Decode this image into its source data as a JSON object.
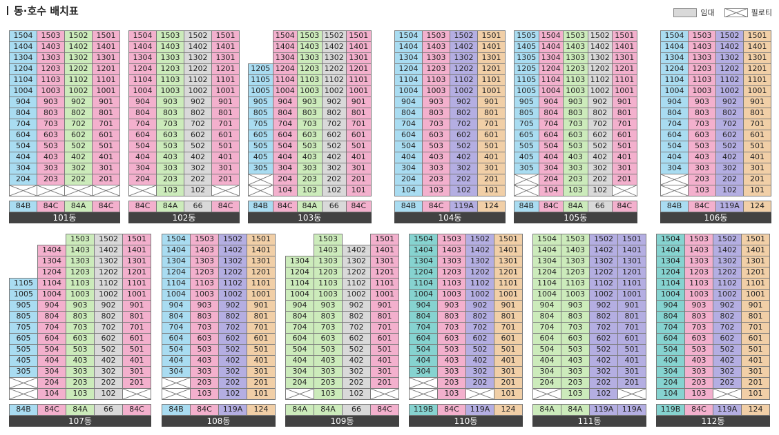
{
  "title": "동·호수 배치표",
  "legend": [
    {
      "label": "임대",
      "kind": "rental",
      "color": "#d9d9d9"
    },
    {
      "label": "필로티",
      "kind": "piloti"
    }
  ],
  "colors": {
    "84A": "#ccebbb",
    "84B": "#a9dcf1",
    "84C": "#f3b0cd",
    "66": "#d9d9d9",
    "119A": "#b4aee2",
    "119B": "#86d3d0",
    "124": "#f1cfa7",
    "rental": "#d9d9d9",
    "label_bg": "#424242"
  },
  "buildings": [
    {
      "name": "101동",
      "floors": 15,
      "types": [
        "84B",
        "84C",
        "84A",
        "84C"
      ],
      "piloti": [
        [
          true,
          true,
          true,
          true
        ]
      ],
      "top": [
        15,
        15,
        15,
        15
      ],
      "rental": []
    },
    {
      "name": "102동",
      "floors": 15,
      "types": [
        "84C",
        "84A",
        "66",
        "84C"
      ],
      "piloti": [
        [
          true,
          false,
          false,
          true
        ]
      ],
      "top": [
        15,
        15,
        15,
        15
      ],
      "rental": [
        [
          2,
          1
        ],
        [
          2,
          2
        ]
      ]
    },
    {
      "name": "103동",
      "floors": 15,
      "types": [
        "84B",
        "84C",
        "84A",
        "66",
        "84C"
      ],
      "piloti": [
        [
          true,
          false,
          false,
          false,
          false
        ],
        [
          true,
          false,
          false,
          false,
          false
        ]
      ],
      "top": [
        12,
        15,
        15,
        15,
        15
      ],
      "rental": [
        [
          3,
          1
        ]
      ]
    },
    {
      "name": "104동",
      "floors": 15,
      "types": [
        "84B",
        "84C",
        "119A",
        "124"
      ],
      "piloti": [],
      "top": [
        15,
        15,
        15,
        15
      ],
      "rental": []
    },
    {
      "name": "105동",
      "floors": 15,
      "types": [
        "84B",
        "84C",
        "84A",
        "66",
        "84C"
      ],
      "piloti": [
        [
          true,
          false,
          false,
          false,
          true
        ],
        [
          true,
          false,
          false,
          false,
          false
        ]
      ],
      "top": [
        15,
        15,
        15,
        15,
        15
      ],
      "rental": [
        [
          3,
          2
        ],
        [
          3,
          1
        ]
      ]
    },
    {
      "name": "106동",
      "floors": 15,
      "types": [
        "84B",
        "84C",
        "119A",
        "124"
      ],
      "piloti": [
        [
          true,
          false,
          false,
          false
        ],
        [
          true,
          false,
          false,
          false
        ]
      ],
      "top": [
        15,
        15,
        15,
        15
      ],
      "rental": []
    },
    {
      "name": "107동",
      "floors": 15,
      "types": [
        "84B",
        "84C",
        "84A",
        "66",
        "84C"
      ],
      "piloti": [
        [
          true,
          false,
          false,
          false,
          true
        ],
        [
          true,
          false,
          false,
          false,
          false
        ]
      ],
      "top": [
        11,
        14,
        15,
        15,
        15
      ],
      "rental": []
    },
    {
      "name": "108동",
      "floors": 15,
      "types": [
        "84B",
        "84C",
        "119A",
        "124"
      ],
      "piloti": [
        [
          true,
          false,
          false,
          false
        ],
        [
          true,
          false,
          false,
          false
        ]
      ],
      "top": [
        15,
        15,
        15,
        15
      ],
      "rental": []
    },
    {
      "name": "109동",
      "floors": 15,
      "types": [
        "84A",
        "84A",
        "66",
        "84C"
      ],
      "piloti": [
        [
          true,
          false,
          false,
          true
        ],
        [
          false,
          false,
          false,
          false
        ]
      ],
      "top": [
        13,
        15,
        14,
        15
      ],
      "rental": [
        [
          2,
          1
        ],
        [
          2,
          2
        ]
      ]
    },
    {
      "name": "110동",
      "floors": 15,
      "types": [
        "119B",
        "84C",
        "119A",
        "124"
      ],
      "piloti": [
        [
          true,
          false,
          true,
          false
        ],
        [
          true,
          false,
          false,
          false
        ]
      ],
      "top": [
        15,
        15,
        15,
        15
      ],
      "rental": []
    },
    {
      "name": "111동",
      "floors": 15,
      "types": [
        "84A",
        "84A",
        "119A",
        "119A"
      ],
      "piloti": [
        [
          true,
          false,
          false,
          true
        ],
        [
          false,
          false,
          false,
          false
        ]
      ],
      "top": [
        15,
        15,
        15,
        15
      ],
      "rental": []
    },
    {
      "name": "112동",
      "floors": 15,
      "types": [
        "119B",
        "84C",
        "119A",
        "124"
      ],
      "piloti": [
        [
          false,
          false,
          true,
          false
        ],
        [
          false,
          false,
          false,
          false
        ]
      ],
      "top": [
        15,
        15,
        15,
        15
      ],
      "rental": []
    }
  ]
}
